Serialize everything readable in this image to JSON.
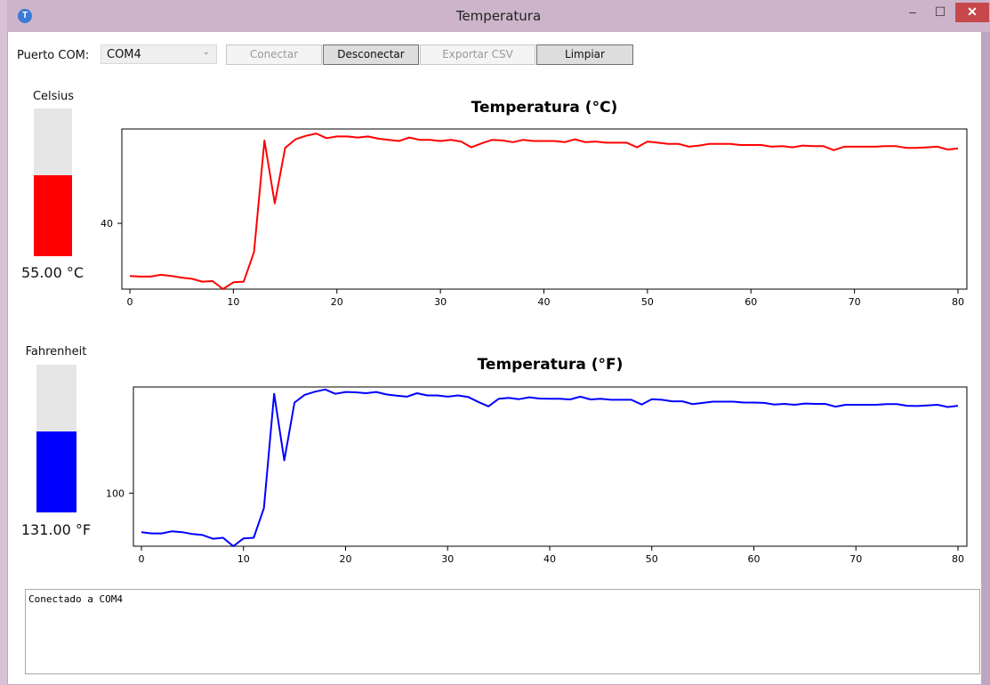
{
  "window": {
    "title": "Temperatura",
    "icon_letter": "T",
    "minimize_glyph": "–",
    "maximize_glyph": "☐",
    "close_glyph": "✕"
  },
  "toolbar": {
    "port_label": "Puerto COM:",
    "port_selected": "COM4",
    "connect_label": "Conectar",
    "disconnect_label": "Desconectar",
    "export_label": "Exportar CSV",
    "clear_label": "Limpiar"
  },
  "celsius_panel": {
    "label": "Celsius",
    "readout": "55.00 °C",
    "fill_fraction": 0.55,
    "color": "#ff0000"
  },
  "fahrenheit_panel": {
    "label": "Fahrenheit",
    "readout": "131.00 °F",
    "fill_fraction": 0.55,
    "color": "#0000ff"
  },
  "log_text": "Conectado a COM4",
  "chart_data": [
    {
      "type": "line",
      "title": "Temperatura (°C)",
      "color": "#ff0000",
      "xlim": [
        0,
        80
      ],
      "ylim": [
        28.5,
        56.5
      ],
      "x_ticks": [
        0,
        10,
        20,
        30,
        40,
        50,
        60,
        70,
        80
      ],
      "y_ticks": [
        40
      ],
      "grid": false,
      "x": [
        0,
        1,
        2,
        3,
        4,
        5,
        6,
        7,
        8,
        9,
        10,
        11,
        12,
        13,
        14,
        15,
        16,
        17,
        18,
        19,
        20,
        21,
        22,
        23,
        24,
        25,
        26,
        27,
        28,
        29,
        30,
        31,
        32,
        33,
        34,
        35,
        36,
        37,
        38,
        39,
        40,
        41,
        42,
        43,
        44,
        45,
        46,
        47,
        48,
        49,
        50,
        51,
        52,
        53,
        54,
        55,
        56,
        57,
        58,
        59,
        60,
        61,
        62,
        63,
        64,
        65,
        66,
        67,
        68,
        69,
        70,
        71,
        72,
        73,
        74,
        75,
        76,
        77,
        78,
        79,
        80
      ],
      "values": [
        30.8,
        30.7,
        30.7,
        31.0,
        30.8,
        30.5,
        30.3,
        29.8,
        29.9,
        28.5,
        29.7,
        29.8,
        35.0,
        54.5,
        43.5,
        53.2,
        54.7,
        55.3,
        55.7,
        54.9,
        55.2,
        55.2,
        55.0,
        55.2,
        54.8,
        54.6,
        54.4,
        55.0,
        54.6,
        54.6,
        54.4,
        54.6,
        54.3,
        53.3,
        54.0,
        54.6,
        54.5,
        54.2,
        54.6,
        54.4,
        54.4,
        54.4,
        54.2,
        54.7,
        54.2,
        54.3,
        54.1,
        54.1,
        54.1,
        53.3,
        54.3,
        54.1,
        53.9,
        53.9,
        53.4,
        53.6,
        53.9,
        53.9,
        53.9,
        53.7,
        53.7,
        53.7,
        53.4,
        53.5,
        53.3,
        53.6,
        53.5,
        53.5,
        52.8,
        53.4,
        53.4,
        53.4,
        53.4,
        53.5,
        53.5,
        53.2,
        53.2,
        53.3,
        53.4,
        52.9,
        53.1
      ]
    },
    {
      "type": "line",
      "title": "Temperatura (°F)",
      "color": "#0000ff",
      "xlim": [
        0,
        80
      ],
      "ylim": [
        83,
        134
      ],
      "x_ticks": [
        0,
        10,
        20,
        30,
        40,
        50,
        60,
        70,
        80
      ],
      "y_ticks": [
        100
      ],
      "grid": false,
      "x": [
        0,
        1,
        2,
        3,
        4,
        5,
        6,
        7,
        8,
        9,
        10,
        11,
        12,
        13,
        14,
        15,
        16,
        17,
        18,
        19,
        20,
        21,
        22,
        23,
        24,
        25,
        26,
        27,
        28,
        29,
        30,
        31,
        32,
        33,
        34,
        35,
        36,
        37,
        38,
        39,
        40,
        41,
        42,
        43,
        44,
        45,
        46,
        47,
        48,
        49,
        50,
        51,
        52,
        53,
        54,
        55,
        56,
        57,
        58,
        59,
        60,
        61,
        62,
        63,
        64,
        65,
        66,
        67,
        68,
        69,
        70,
        71,
        72,
        73,
        74,
        75,
        76,
        77,
        78,
        79,
        80
      ],
      "values": [
        87.5,
        87.1,
        87.1,
        87.8,
        87.5,
        86.9,
        86.6,
        85.4,
        85.7,
        83.0,
        85.5,
        85.7,
        95.2,
        131.8,
        110.5,
        129.0,
        131.5,
        132.5,
        133.2,
        131.8,
        132.4,
        132.3,
        132.0,
        132.4,
        131.6,
        131.2,
        130.9,
        132.0,
        131.3,
        131.3,
        130.9,
        131.3,
        130.8,
        129.2,
        127.8,
        130.2,
        130.5,
        130.1,
        130.7,
        130.3,
        130.2,
        130.2,
        130.0,
        130.9,
        130.0,
        130.2,
        129.9,
        129.9,
        129.9,
        128.4,
        130.1,
        129.9,
        129.4,
        129.4,
        128.5,
        128.9,
        129.3,
        129.3,
        129.3,
        129.0,
        129.0,
        128.9,
        128.4,
        128.6,
        128.3,
        128.7,
        128.6,
        128.6,
        127.7,
        128.3,
        128.3,
        128.3,
        128.3,
        128.5,
        128.5,
        128.0,
        127.9,
        128.1,
        128.3,
        127.6,
        128.0
      ]
    }
  ]
}
